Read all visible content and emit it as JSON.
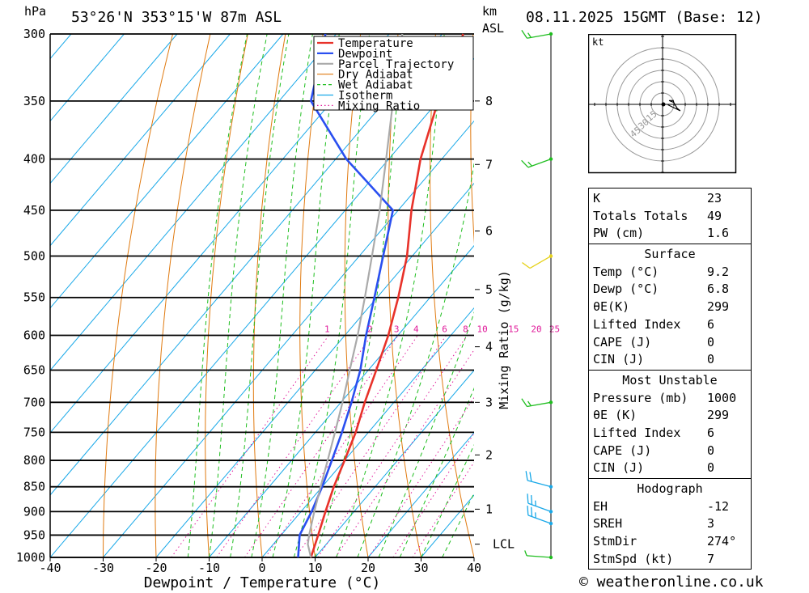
{
  "header": {
    "pressure_unit": "hPa",
    "location": "53°26'N  353°15'W  87m  ASL",
    "height_unit_line1": "km",
    "height_unit_line2": "ASL",
    "datetime": "08.11.2025  15GMT  (Base: 12)"
  },
  "legend": [
    {
      "label": "Temperature",
      "color": "#e8322a",
      "style": "solid"
    },
    {
      "label": "Dewpoint",
      "color": "#2a4ff0",
      "style": "solid"
    },
    {
      "label": "Parcel Trajectory",
      "color": "#aaaaaa",
      "style": "solid"
    },
    {
      "label": "Dry Adiabat",
      "color": "#e07a10",
      "style": "solid"
    },
    {
      "label": "Wet Adiabat",
      "color": "#1fbe1f",
      "style": "dashed"
    },
    {
      "label": "Isotherm",
      "color": "#18a8e8",
      "style": "solid"
    },
    {
      "label": "Mixing Ratio",
      "color": "#e01a9a",
      "style": "dotted"
    }
  ],
  "chart_data": {
    "type": "line",
    "xlabel": "Dewpoint / Temperature (°C)",
    "xlim": [
      -40,
      40
    ],
    "x_ticks": [
      -40,
      -30,
      -20,
      -10,
      0,
      10,
      20,
      30,
      40
    ],
    "pressure_levels": [
      300,
      350,
      400,
      450,
      500,
      550,
      600,
      650,
      700,
      750,
      800,
      850,
      900,
      950,
      1000
    ],
    "ylim_hPa": [
      1000,
      300
    ],
    "log_pressure_axis": true,
    "height_ticks_km": [
      {
        "label": "8",
        "p": 350
      },
      {
        "label": "7",
        "p": 405
      },
      {
        "label": "6",
        "p": 472
      },
      {
        "label": "5",
        "p": 540
      },
      {
        "label": "4",
        "p": 616
      },
      {
        "label": "3",
        "p": 700
      },
      {
        "label": "2",
        "p": 790
      },
      {
        "label": "1",
        "p": 895
      },
      {
        "label": "LCL",
        "p": 970
      }
    ],
    "mixing_ratio_label": "Mixing Ratio (g/kg)",
    "mixing_ratio_values": [
      "1",
      "2",
      "3",
      "4",
      "6",
      "8",
      "10",
      "15",
      "20",
      "25"
    ],
    "series": [
      {
        "name": "Temperature",
        "color": "#e8322a",
        "points": [
          [
            1000,
            9.2
          ],
          [
            950,
            7
          ],
          [
            900,
            4.6
          ],
          [
            850,
            2.2
          ],
          [
            800,
            0
          ],
          [
            750,
            -2.4
          ],
          [
            700,
            -5.5
          ],
          [
            650,
            -8.5
          ],
          [
            600,
            -11.8
          ],
          [
            550,
            -16
          ],
          [
            500,
            -21
          ],
          [
            450,
            -27.5
          ],
          [
            400,
            -34
          ],
          [
            350,
            -40
          ],
          [
            300,
            -46
          ]
        ]
      },
      {
        "name": "Dewpoint",
        "color": "#2a4ff0",
        "points": [
          [
            1000,
            6.8
          ],
          [
            950,
            3.5
          ],
          [
            900,
            2
          ],
          [
            850,
            0
          ],
          [
            800,
            -2.4
          ],
          [
            750,
            -5
          ],
          [
            700,
            -8
          ],
          [
            650,
            -11.5
          ],
          [
            600,
            -16
          ],
          [
            550,
            -20.5
          ],
          [
            500,
            -25.5
          ],
          [
            450,
            -31
          ],
          [
            400,
            -48
          ],
          [
            350,
            -64
          ],
          [
            300,
            -72
          ]
        ]
      },
      {
        "name": "Parcel Trajectory",
        "color": "#aaaaaa",
        "points": [
          [
            1000,
            9.2
          ],
          [
            970,
            6.5
          ],
          [
            950,
            5.3
          ],
          [
            900,
            2.5
          ],
          [
            850,
            -0.3
          ],
          [
            800,
            -3.2
          ],
          [
            750,
            -6.3
          ],
          [
            700,
            -9.7
          ],
          [
            650,
            -13.5
          ],
          [
            600,
            -17.6
          ],
          [
            550,
            -22.3
          ],
          [
            500,
            -27.6
          ],
          [
            450,
            -33.5
          ],
          [
            400,
            -40.5
          ],
          [
            350,
            -48.5
          ],
          [
            300,
            -57.5
          ]
        ]
      }
    ]
  },
  "hodograph": {
    "unit_label": "kt",
    "ring_labels": [
      "15",
      "30",
      "45"
    ]
  },
  "winds": [
    {
      "p": 1000,
      "dir": 274,
      "spd": 7,
      "color": "#1fbe1f"
    },
    {
      "p": 925,
      "dir": 290,
      "spd": 25,
      "color": "#18a8e8"
    },
    {
      "p": 900,
      "dir": 290,
      "spd": 25,
      "color": "#18a8e8"
    },
    {
      "p": 850,
      "dir": 285,
      "spd": 20,
      "color": "#18a8e8"
    },
    {
      "p": 700,
      "dir": 260,
      "spd": 15,
      "color": "#1fbe1f"
    },
    {
      "p": 500,
      "dir": 240,
      "spd": 10,
      "color": "#e6d21a"
    },
    {
      "p": 400,
      "dir": 250,
      "spd": 15,
      "color": "#1fbe1f"
    },
    {
      "p": 300,
      "dir": 260,
      "spd": 15,
      "color": "#1fbe1f"
    }
  ],
  "indices": {
    "k": {
      "label": "K",
      "value": "23"
    },
    "totals": {
      "label": "Totals Totals",
      "value": "49"
    },
    "pw": {
      "label": "PW (cm)",
      "value": "1.6"
    }
  },
  "surface": {
    "title": "Surface",
    "temp": {
      "label": "Temp (°C)",
      "value": "9.2"
    },
    "dewp": {
      "label": "Dewp (°C)",
      "value": "6.8"
    },
    "theta_e": {
      "label": "θE(K)",
      "value": "299"
    },
    "lifted": {
      "label": "Lifted Index",
      "value": "6"
    },
    "cape": {
      "label": "CAPE (J)",
      "value": "0"
    },
    "cin": {
      "label": "CIN (J)",
      "value": "0"
    }
  },
  "most_unstable": {
    "title": "Most Unstable",
    "pressure": {
      "label": "Pressure (mb)",
      "value": "1000"
    },
    "theta_e": {
      "label": "θE (K)",
      "value": "299"
    },
    "lifted": {
      "label": "Lifted Index",
      "value": "6"
    },
    "cape": {
      "label": "CAPE (J)",
      "value": "0"
    },
    "cin": {
      "label": "CIN (J)",
      "value": "0"
    }
  },
  "hodo_table": {
    "title": "Hodograph",
    "eh": {
      "label": "EH",
      "value": "-12"
    },
    "sreh": {
      "label": "SREH",
      "value": "3"
    },
    "stmdir": {
      "label": "StmDir",
      "value": "274°"
    },
    "stmspd": {
      "label": "StmSpd (kt)",
      "value": "7"
    }
  },
  "copyright": "© weatheronline.co.uk"
}
